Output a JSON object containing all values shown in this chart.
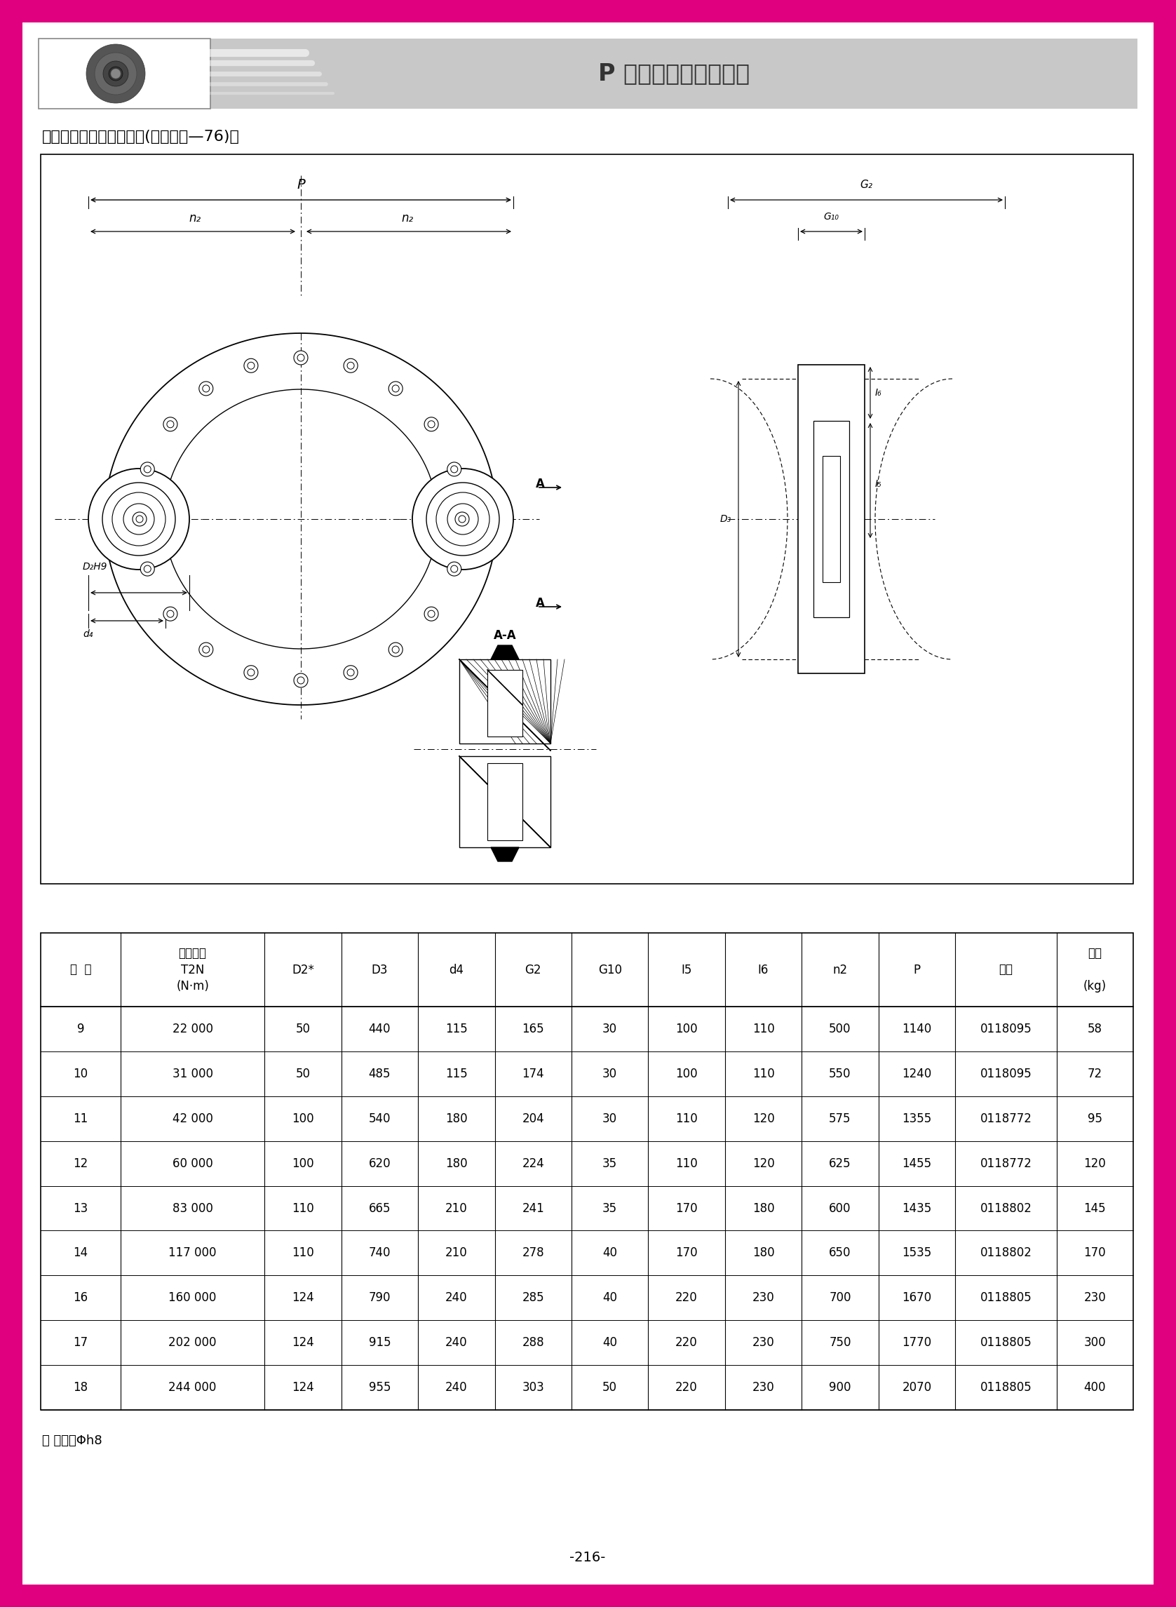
{
  "page_title": "P 系列行星齒輪減速器",
  "subtitle": "带橡胶衬套的双向扭力臂(附件代号—76)：",
  "bg_color": "#ffffff",
  "header_bg": "#c8c8c8",
  "table_data": [
    [
      "9",
      "22 000",
      "50",
      "440",
      "115",
      "165",
      "30",
      "100",
      "110",
      "500",
      "1140",
      "0118095",
      "58"
    ],
    [
      "10",
      "31 000",
      "50",
      "485",
      "115",
      "174",
      "30",
      "100",
      "110",
      "550",
      "1240",
      "0118095",
      "72"
    ],
    [
      "11",
      "42 000",
      "100",
      "540",
      "180",
      "204",
      "30",
      "110",
      "120",
      "575",
      "1355",
      "0118772",
      "95"
    ],
    [
      "12",
      "60 000",
      "100",
      "620",
      "180",
      "224",
      "35",
      "110",
      "120",
      "625",
      "1455",
      "0118772",
      "120"
    ],
    [
      "13",
      "83 000",
      "110",
      "665",
      "210",
      "241",
      "35",
      "170",
      "180",
      "600",
      "1435",
      "0118802",
      "145"
    ],
    [
      "14",
      "117 000",
      "110",
      "740",
      "210",
      "278",
      "40",
      "170",
      "180",
      "650",
      "1535",
      "0118802",
      "170"
    ],
    [
      "16",
      "160 000",
      "124",
      "790",
      "240",
      "285",
      "40",
      "220",
      "230",
      "700",
      "1670",
      "0118805",
      "230"
    ],
    [
      "17",
      "202 000",
      "124",
      "915",
      "240",
      "288",
      "40",
      "220",
      "230",
      "750",
      "1770",
      "0118805",
      "300"
    ],
    [
      "18",
      "244 000",
      "124",
      "955",
      "240",
      "303",
      "50",
      "220",
      "230",
      "900",
      "2070",
      "0118805",
      "400"
    ]
  ],
  "footnote": "＊ 销轴：Φh8",
  "page_num": "-216-",
  "magenta_color": "#e0007f",
  "gray_color": "#aaaaaa"
}
